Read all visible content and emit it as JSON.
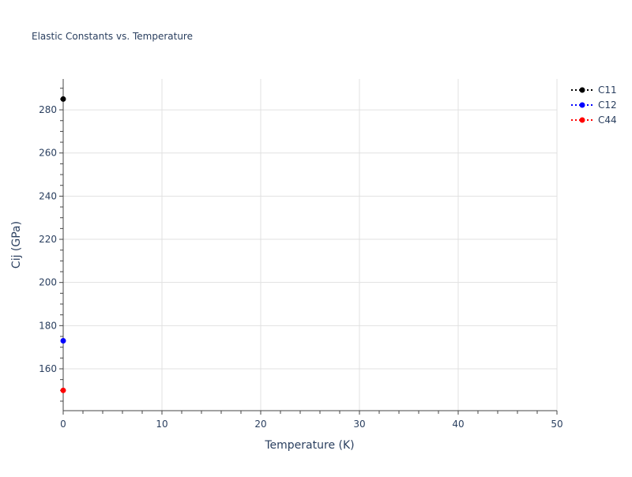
{
  "chart_data": {
    "type": "line",
    "title": "Elastic Constants vs. Temperature",
    "xlabel": "Temperature (K)",
    "ylabel": "Cij (GPa)",
    "xlim": [
      0,
      50
    ],
    "ylim": [
      140.6,
      294.3
    ],
    "xticks": [
      0,
      10,
      20,
      30,
      40,
      50
    ],
    "yticks": [
      160,
      180,
      200,
      220,
      240,
      260,
      280
    ],
    "grid": true,
    "legend_position": "top-right",
    "series": [
      {
        "name": "C11",
        "color": "#000000",
        "x": [
          0
        ],
        "y": [
          285
        ]
      },
      {
        "name": "C12",
        "color": "#0000ff",
        "x": [
          0
        ],
        "y": [
          173
        ]
      },
      {
        "name": "C44",
        "color": "#ff0000",
        "x": [
          0
        ],
        "y": [
          150
        ]
      }
    ]
  }
}
